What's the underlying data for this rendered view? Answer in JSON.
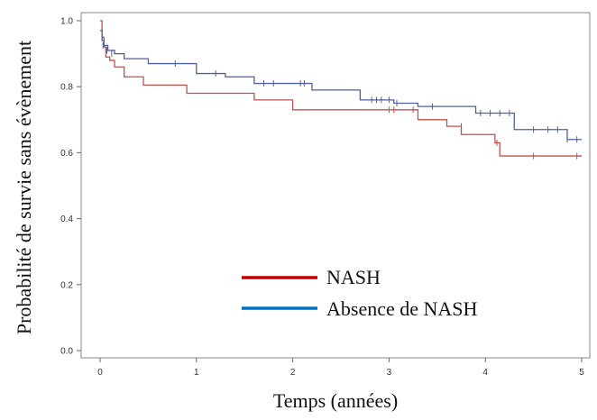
{
  "chart_data": {
    "type": "line",
    "title": "",
    "xlabel": "Temps (années)",
    "ylabel": "Probabilité de survie sans évènement",
    "xlim": [
      0,
      5
    ],
    "ylim": [
      0,
      1
    ],
    "x_ticks": [
      "0",
      "1",
      "2",
      "3",
      "4",
      "5"
    ],
    "y_ticks": [
      "0.0",
      "0.2",
      "0.4",
      "0.6",
      "0.8",
      "1.0"
    ],
    "grid": false,
    "legend_placement": "center",
    "series": [
      {
        "name": "NASH",
        "color": "#c0504d",
        "legend_color": "#c00000",
        "step": true,
        "x": [
          0,
          0.02,
          0.04,
          0.06,
          0.1,
          0.15,
          0.25,
          0.45,
          0.9,
          1.6,
          2.0,
          3.3,
          3.6,
          3.75,
          4.1,
          4.15,
          5.0
        ],
        "y": [
          1.0,
          0.95,
          0.92,
          0.89,
          0.88,
          0.86,
          0.83,
          0.805,
          0.78,
          0.76,
          0.73,
          0.7,
          0.68,
          0.655,
          0.63,
          0.59,
          0.59
        ],
        "censored_x": [
          3.0,
          3.05,
          3.25,
          3.75,
          4.12,
          4.5,
          4.95
        ],
        "censored_y": [
          0.73,
          0.73,
          0.73,
          0.68,
          0.63,
          0.59,
          0.59
        ]
      },
      {
        "name": "Absence de NASH",
        "color": "#5060a0",
        "legend_color": "#0070c0",
        "step": true,
        "x": [
          0,
          0.02,
          0.04,
          0.08,
          0.15,
          0.25,
          0.5,
          1.0,
          1.3,
          1.6,
          2.0,
          2.2,
          2.7,
          3.05,
          3.3,
          3.9,
          4.3,
          4.85,
          5.0
        ],
        "y": [
          0.97,
          0.94,
          0.925,
          0.91,
          0.9,
          0.885,
          0.87,
          0.84,
          0.83,
          0.81,
          0.81,
          0.79,
          0.76,
          0.75,
          0.74,
          0.72,
          0.67,
          0.64,
          0.64
        ],
        "censored_x": [
          0.03,
          0.07,
          0.12,
          0.78,
          1.2,
          1.7,
          1.8,
          2.08,
          2.12,
          2.82,
          2.87,
          2.92,
          3.0,
          3.08,
          3.45,
          3.95,
          4.05,
          4.15,
          4.25,
          4.5,
          4.65,
          4.75,
          4.85,
          4.95
        ],
        "censored_y": [
          0.925,
          0.91,
          0.9,
          0.87,
          0.84,
          0.81,
          0.81,
          0.81,
          0.81,
          0.76,
          0.76,
          0.76,
          0.76,
          0.75,
          0.74,
          0.72,
          0.72,
          0.72,
          0.72,
          0.67,
          0.67,
          0.67,
          0.64,
          0.64
        ]
      }
    ]
  }
}
